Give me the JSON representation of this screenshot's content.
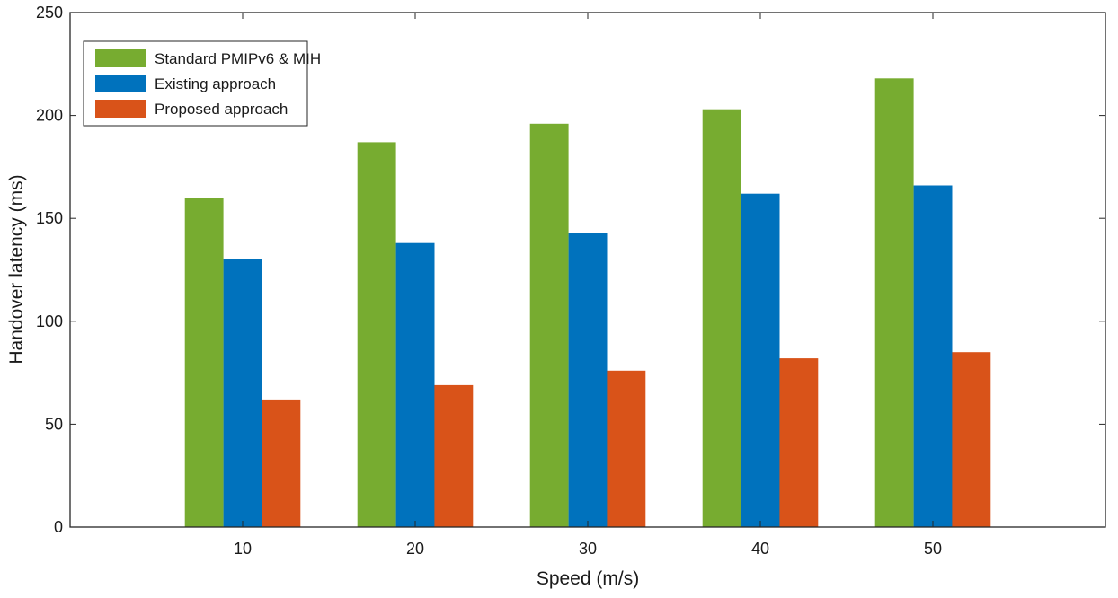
{
  "chart_data": {
    "type": "bar",
    "title": "",
    "xlabel": "Speed (m/s)",
    "ylabel": "Handover latency (ms)",
    "categories": [
      "10",
      "20",
      "30",
      "40",
      "50"
    ],
    "x_range": [
      0,
      60
    ],
    "ylim": [
      0,
      250
    ],
    "yticks": [
      0,
      50,
      100,
      150,
      200,
      250
    ],
    "grid": false,
    "legend_position": "top-left",
    "series": [
      {
        "name": "Standard PMIPv6 & MIH",
        "color": "#77AC30",
        "values": [
          160,
          187,
          196,
          203,
          218
        ]
      },
      {
        "name": "Existing approach",
        "color": "#0072BD",
        "values": [
          130,
          138,
          143,
          162,
          166
        ]
      },
      {
        "name": "Proposed approach",
        "color": "#D95319",
        "values": [
          62,
          69,
          76,
          82,
          85
        ]
      }
    ]
  }
}
